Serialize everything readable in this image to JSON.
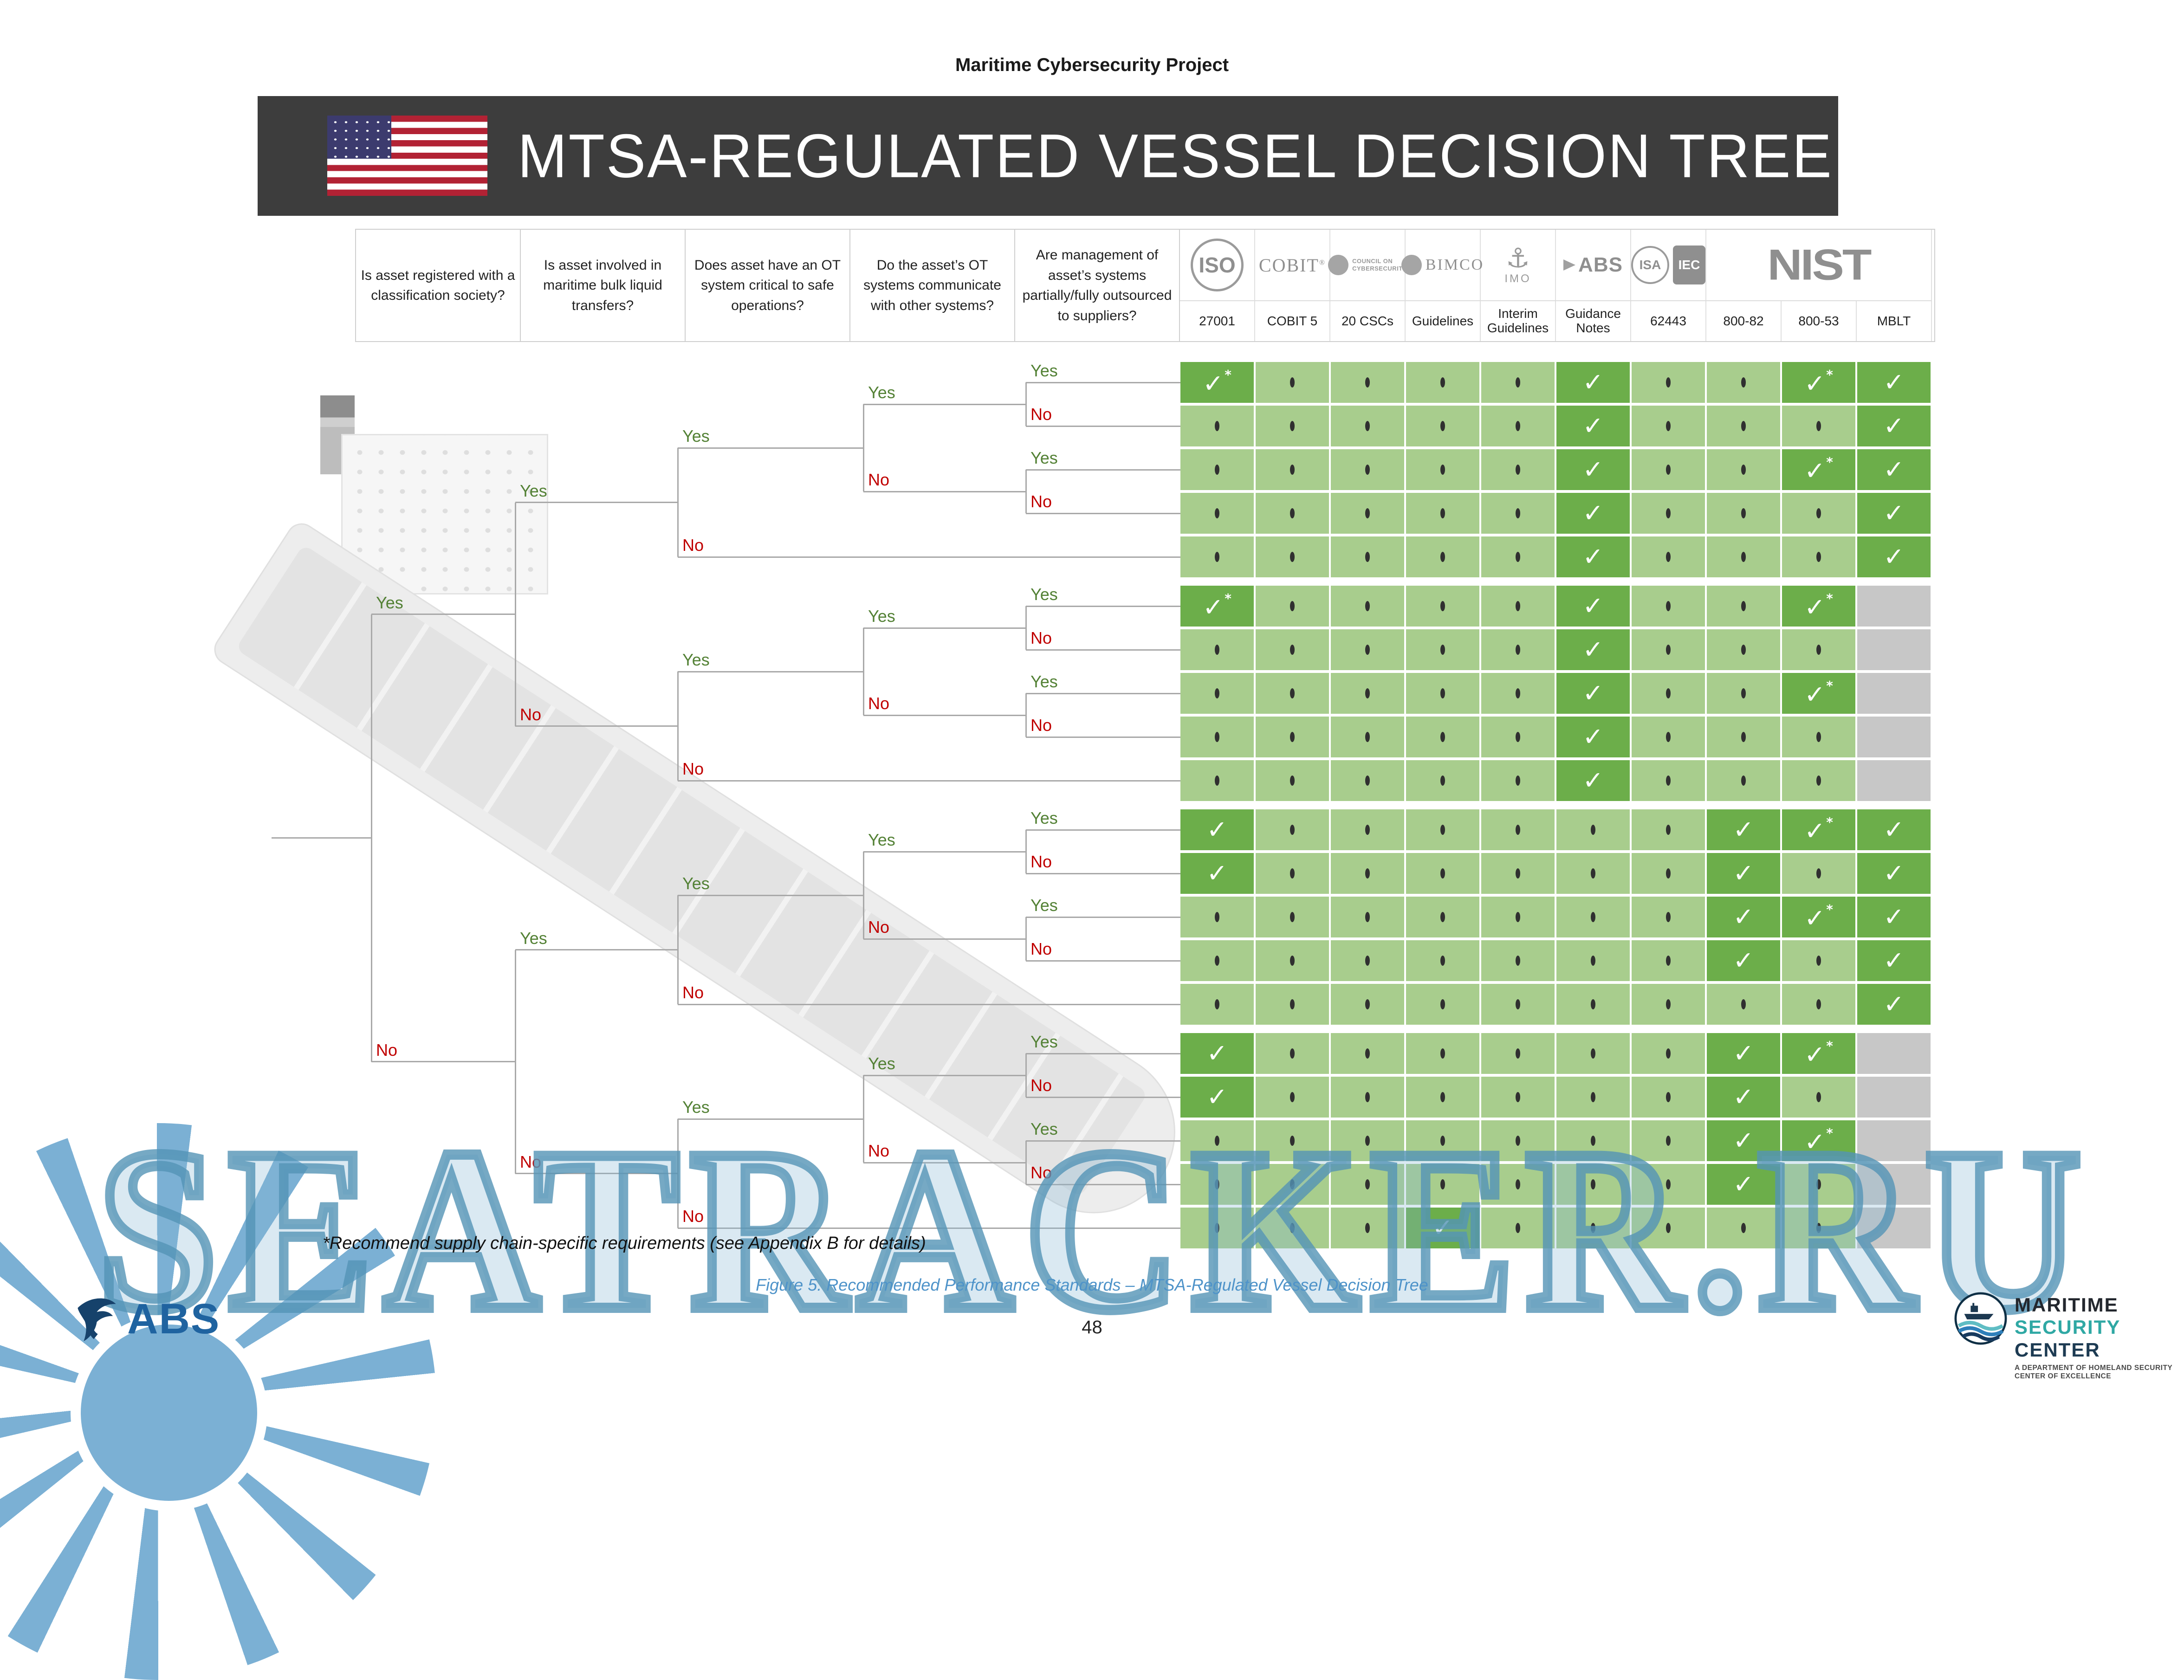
{
  "page": {
    "doc_header": "Maritime Cybersecurity Project",
    "banner_title": "MTSA-REGULATED VESSEL DECISION TREE",
    "footnote": "*Recommend supply chain-specific requirements (see Appendix B for details)",
    "figure_caption": "Figure 5. Recommended Performance Standards – MTSA-Regulated Vessel Decision Tree",
    "page_number": "48",
    "watermark_text": "SEATRACKER.RU"
  },
  "questions": [
    "Is asset registered with a classification society?",
    "Is asset involved in maritime bulk liquid transfers?",
    "Does asset have an OT system critical to safe operations?",
    "Do the asset’s OT systems communicate with other systems?",
    "Are management of asset’s systems partially/fully outsourced to suppliers?"
  ],
  "standards": {
    "logos": [
      {
        "name": "iso-logo",
        "text": "ISO"
      },
      {
        "name": "cobit-logo",
        "text": "COBIT"
      },
      {
        "name": "council-cybersecurity-logo",
        "lines": [
          "COUNCIL ON",
          "CYBERSECURITY"
        ]
      },
      {
        "name": "bimco-logo",
        "text": "BIMCO"
      },
      {
        "name": "imo-logo",
        "text": "IMO"
      },
      {
        "name": "abs-logo",
        "text": "ABS"
      },
      {
        "name": "isa-iec-logo",
        "parts": [
          "ISA",
          "IEC"
        ]
      },
      {
        "name": "nist-logo",
        "text": "NIST",
        "span": 3
      }
    ],
    "labels": [
      "27001",
      "COBIT 5",
      "20 CSCs",
      "Guidelines",
      "Interim Guidelines",
      "Guidance Notes",
      "62443",
      "800-82",
      "800-53",
      "MBLT"
    ]
  },
  "tree": {
    "yes_label": "Yes",
    "no_label": "No",
    "yes_color": "#538135",
    "no_color": "#c00000"
  },
  "matrix": {
    "legend": {
      "c": "✓",
      "cs": "✓*",
      "d": "•",
      "x": "N/A"
    },
    "colors": {
      "light_green": "#a8cd8d",
      "dark_green": "#6cae4a",
      "gray_na": "#c7c7c7"
    },
    "rows": [
      {
        "path": [
          "Yes",
          "Yes",
          "Yes",
          "Yes",
          "Yes"
        ],
        "cells": [
          "cs",
          "d",
          "d",
          "d",
          "d",
          "c",
          "d",
          "d",
          "cs",
          "c"
        ]
      },
      {
        "path": [
          "Yes",
          "Yes",
          "Yes",
          "Yes",
          "No"
        ],
        "cells": [
          "d",
          "d",
          "d",
          "d",
          "d",
          "c",
          "d",
          "d",
          "d",
          "c"
        ]
      },
      {
        "path": [
          "Yes",
          "Yes",
          "Yes",
          "No",
          "Yes"
        ],
        "cells": [
          "d",
          "d",
          "d",
          "d",
          "d",
          "c",
          "d",
          "d",
          "cs",
          "c"
        ]
      },
      {
        "path": [
          "Yes",
          "Yes",
          "Yes",
          "No",
          "No"
        ],
        "cells": [
          "d",
          "d",
          "d",
          "d",
          "d",
          "c",
          "d",
          "d",
          "d",
          "c"
        ]
      },
      {
        "path": [
          "Yes",
          "Yes",
          "No",
          "",
          ""
        ],
        "cells": [
          "d",
          "d",
          "d",
          "d",
          "d",
          "c",
          "d",
          "d",
          "d",
          "c"
        ]
      },
      {
        "path": [
          "Yes",
          "No",
          "Yes",
          "Yes",
          "Yes"
        ],
        "cells": [
          "cs",
          "d",
          "d",
          "d",
          "d",
          "c",
          "d",
          "d",
          "cs",
          "x"
        ]
      },
      {
        "path": [
          "Yes",
          "No",
          "Yes",
          "Yes",
          "No"
        ],
        "cells": [
          "d",
          "d",
          "d",
          "d",
          "d",
          "c",
          "d",
          "d",
          "d",
          "x"
        ]
      },
      {
        "path": [
          "Yes",
          "No",
          "Yes",
          "No",
          "Yes"
        ],
        "cells": [
          "d",
          "d",
          "d",
          "d",
          "d",
          "c",
          "d",
          "d",
          "cs",
          "x"
        ]
      },
      {
        "path": [
          "Yes",
          "No",
          "Yes",
          "No",
          "No"
        ],
        "cells": [
          "d",
          "d",
          "d",
          "d",
          "d",
          "c",
          "d",
          "d",
          "d",
          "x"
        ]
      },
      {
        "path": [
          "Yes",
          "No",
          "No",
          "",
          ""
        ],
        "cells": [
          "d",
          "d",
          "d",
          "d",
          "d",
          "c",
          "d",
          "d",
          "d",
          "x"
        ]
      },
      {
        "path": [
          "No",
          "Yes",
          "Yes",
          "Yes",
          "Yes"
        ],
        "cells": [
          "c",
          "d",
          "d",
          "d",
          "d",
          "d",
          "d",
          "c",
          "cs",
          "c"
        ]
      },
      {
        "path": [
          "No",
          "Yes",
          "Yes",
          "Yes",
          "No"
        ],
        "cells": [
          "c",
          "d",
          "d",
          "d",
          "d",
          "d",
          "d",
          "c",
          "d",
          "c"
        ]
      },
      {
        "path": [
          "No",
          "Yes",
          "Yes",
          "No",
          "Yes"
        ],
        "cells": [
          "d",
          "d",
          "d",
          "d",
          "d",
          "d",
          "d",
          "c",
          "cs",
          "c"
        ]
      },
      {
        "path": [
          "No",
          "Yes",
          "Yes",
          "No",
          "No"
        ],
        "cells": [
          "d",
          "d",
          "d",
          "d",
          "d",
          "d",
          "d",
          "c",
          "d",
          "c"
        ]
      },
      {
        "path": [
          "No",
          "Yes",
          "No",
          "",
          ""
        ],
        "cells": [
          "d",
          "d",
          "d",
          "d",
          "d",
          "d",
          "d",
          "d",
          "d",
          "c"
        ]
      },
      {
        "path": [
          "No",
          "No",
          "Yes",
          "Yes",
          "Yes"
        ],
        "cells": [
          "c",
          "d",
          "d",
          "d",
          "d",
          "d",
          "d",
          "c",
          "cs",
          "x"
        ]
      },
      {
        "path": [
          "No",
          "No",
          "Yes",
          "Yes",
          "No"
        ],
        "cells": [
          "c",
          "d",
          "d",
          "d",
          "d",
          "d",
          "d",
          "c",
          "d",
          "x"
        ]
      },
      {
        "path": [
          "No",
          "No",
          "Yes",
          "No",
          "Yes"
        ],
        "cells": [
          "d",
          "d",
          "d",
          "d",
          "d",
          "d",
          "d",
          "c",
          "cs",
          "x"
        ]
      },
      {
        "path": [
          "No",
          "No",
          "Yes",
          "No",
          "No"
        ],
        "cells": [
          "d",
          "d",
          "d",
          "d",
          "d",
          "d",
          "d",
          "c",
          "d",
          "x"
        ]
      },
      {
        "path": [
          "No",
          "No",
          "No",
          "",
          ""
        ],
        "cells": [
          "d",
          "d",
          "d",
          "c",
          "d",
          "d",
          "d",
          "d",
          "d",
          "x"
        ]
      }
    ]
  },
  "footer_logos": {
    "abs_wordmark": "ABS",
    "msc": {
      "line1": "MARITIME",
      "line2_a": "SECURITY",
      "line2_b": " CENTER",
      "tagline": "A DEPARTMENT OF HOMELAND SECURITY CENTER OF EXCELLENCE"
    }
  }
}
